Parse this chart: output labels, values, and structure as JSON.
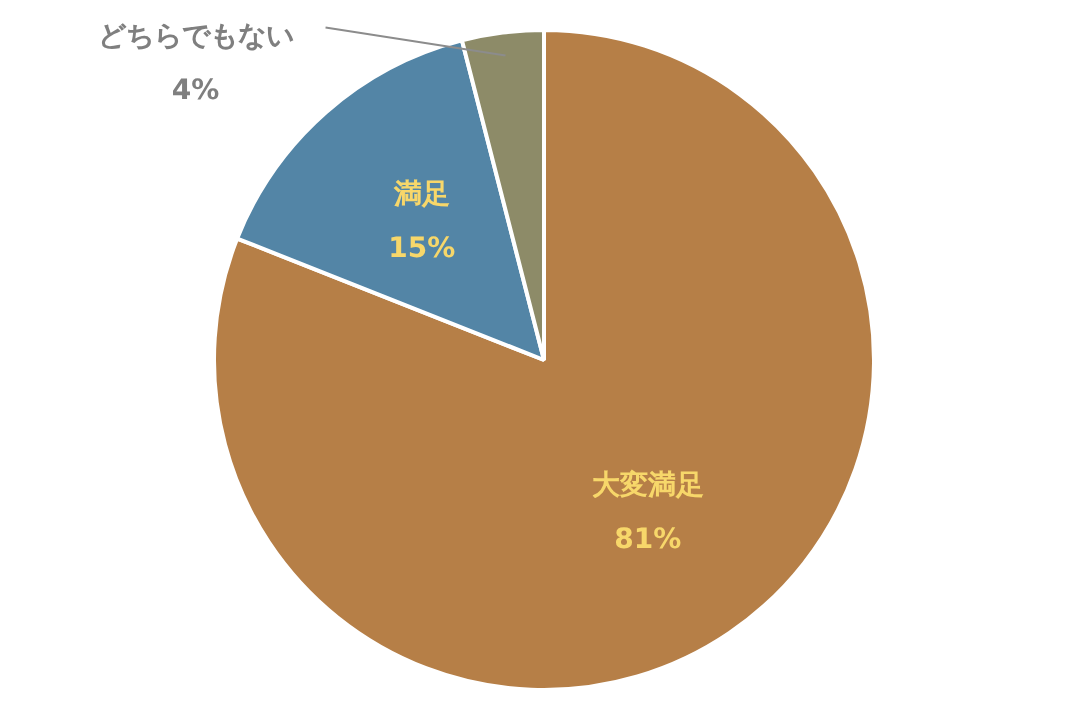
{
  "chart_data": {
    "type": "pie",
    "categories": [
      "大変満足",
      "満足",
      "どちらでもない"
    ],
    "values": [
      81,
      15,
      4
    ],
    "colors": [
      "#b67f47",
      "#5385a6",
      "#8d8b68"
    ],
    "value_labels": [
      "81%",
      "15%",
      "4%"
    ]
  }
}
